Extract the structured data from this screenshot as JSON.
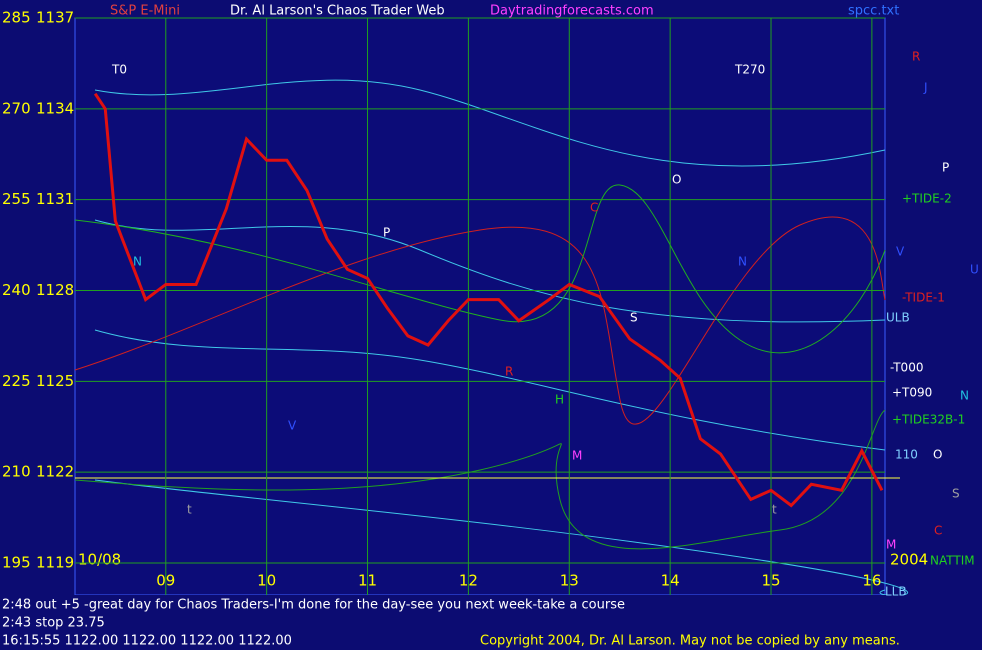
{
  "chart_data": {
    "type": "line",
    "title": "Dr. Al Larson's Chaos Trader Web",
    "subtitle": "Daytradingforecasts.com",
    "symbol": "S&P E-Mini",
    "file": "spcc.txt",
    "date": "10/08",
    "year": "2004",
    "xlim": [
      8.1,
      16.13
    ],
    "xticks": [
      {
        "value": 9,
        "label": "09"
      },
      {
        "value": 10,
        "label": "10"
      },
      {
        "value": 11,
        "label": "11"
      },
      {
        "value": 12,
        "label": "12"
      },
      {
        "value": 13,
        "label": "13"
      },
      {
        "value": 14,
        "label": "14"
      },
      {
        "value": 15,
        "label": "15"
      },
      {
        "value": 16,
        "label": "16"
      }
    ],
    "ylim": [
      195,
      285
    ],
    "yticks": [
      195,
      210,
      225,
      240,
      255,
      270,
      285
    ],
    "y2lim": [
      1119,
      1137
    ],
    "y2ticks": [
      1119,
      1122,
      1125,
      1128,
      1131,
      1134,
      1137
    ],
    "grid": true,
    "series": [
      {
        "name": "S&P E-Mini",
        "color": "#e01010",
        "axis": "y2",
        "x": [
          8.3,
          8.4,
          8.5,
          8.8,
          9.0,
          9.3,
          9.6,
          9.8,
          10.0,
          10.2,
          10.4,
          10.6,
          10.8,
          11.0,
          11.2,
          11.4,
          11.6,
          11.8,
          12.0,
          12.3,
          12.5,
          12.8,
          13.0,
          13.3,
          13.6,
          13.9,
          14.1,
          14.3,
          14.5,
          14.8,
          15.0,
          15.2,
          15.4,
          15.7,
          15.9,
          16.1
        ],
        "values": [
          1134.5,
          1134.0,
          1130.3,
          1127.7,
          1128.2,
          1128.2,
          1130.7,
          1133.0,
          1132.3,
          1132.3,
          1131.3,
          1129.7,
          1128.7,
          1128.4,
          1127.4,
          1126.5,
          1126.2,
          1127.0,
          1127.7,
          1127.7,
          1127.0,
          1127.7,
          1128.2,
          1127.8,
          1126.4,
          1125.7,
          1125.1,
          1123.1,
          1122.6,
          1121.1,
          1121.4,
          1120.9,
          1121.6,
          1121.4,
          1122.7,
          1121.4
        ]
      }
    ],
    "annotations": [
      "T0",
      "T270",
      "R",
      "J",
      "P",
      "+TIDE-2",
      "V",
      "U",
      "-TIDE-1",
      "ULB",
      "-T000",
      "+T090",
      "N",
      "+TIDE32B-1",
      "110",
      "O",
      "S",
      "C",
      "M",
      "NATTIM",
      "LLB",
      "N",
      "P",
      "C",
      "O",
      "N",
      "S",
      "R",
      "H",
      "M",
      "V",
      "t",
      "t"
    ],
    "footer": [
      "2:48 out +5 -great day for Chaos Traders-I'm done for the day-see you next week-take a course",
      "2:43 stop 23.75",
      "16:15:55  1122.00 1122.00 1122.00 1122.00"
    ],
    "copyright": "Copyright 2004, Dr. Al Larson. May not be copied by any means."
  }
}
